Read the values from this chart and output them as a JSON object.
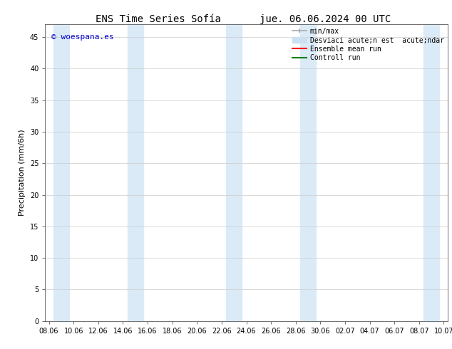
{
  "title_left": "ENS Time Series Sofía",
  "title_right": "jue. 06.06.2024 00 UTC",
  "ylabel": "Precipitation (mm/6h)",
  "watermark": "© woespana.es",
  "watermark_color": "#0000cc",
  "ylim": [
    0,
    47
  ],
  "yticks": [
    0,
    5,
    10,
    15,
    20,
    25,
    30,
    35,
    40,
    45
  ],
  "xtick_labels": [
    "08.06",
    "10.06",
    "12.06",
    "14.06",
    "16.06",
    "18.06",
    "20.06",
    "22.06",
    "24.06",
    "26.06",
    "28.06",
    "30.06",
    "02.07",
    "04.07",
    "06.07",
    "08.07",
    "10.07"
  ],
  "background_color": "#ffffff",
  "band_color": "#daeaf7",
  "legend_line1": "min/max",
  "legend_line2": "Desviaci acute;n est  acute;ndar",
  "legend_line3": "Ensemble mean run",
  "legend_line4": "Controll run",
  "legend_color1": "#aaaaaa",
  "legend_color2": "#cce0f0",
  "legend_color3": "#ff0000",
  "legend_color4": "#008000",
  "title_fontsize": 10,
  "tick_fontsize": 7,
  "ylabel_fontsize": 8,
  "watermark_fontsize": 8,
  "legend_fontsize": 7
}
